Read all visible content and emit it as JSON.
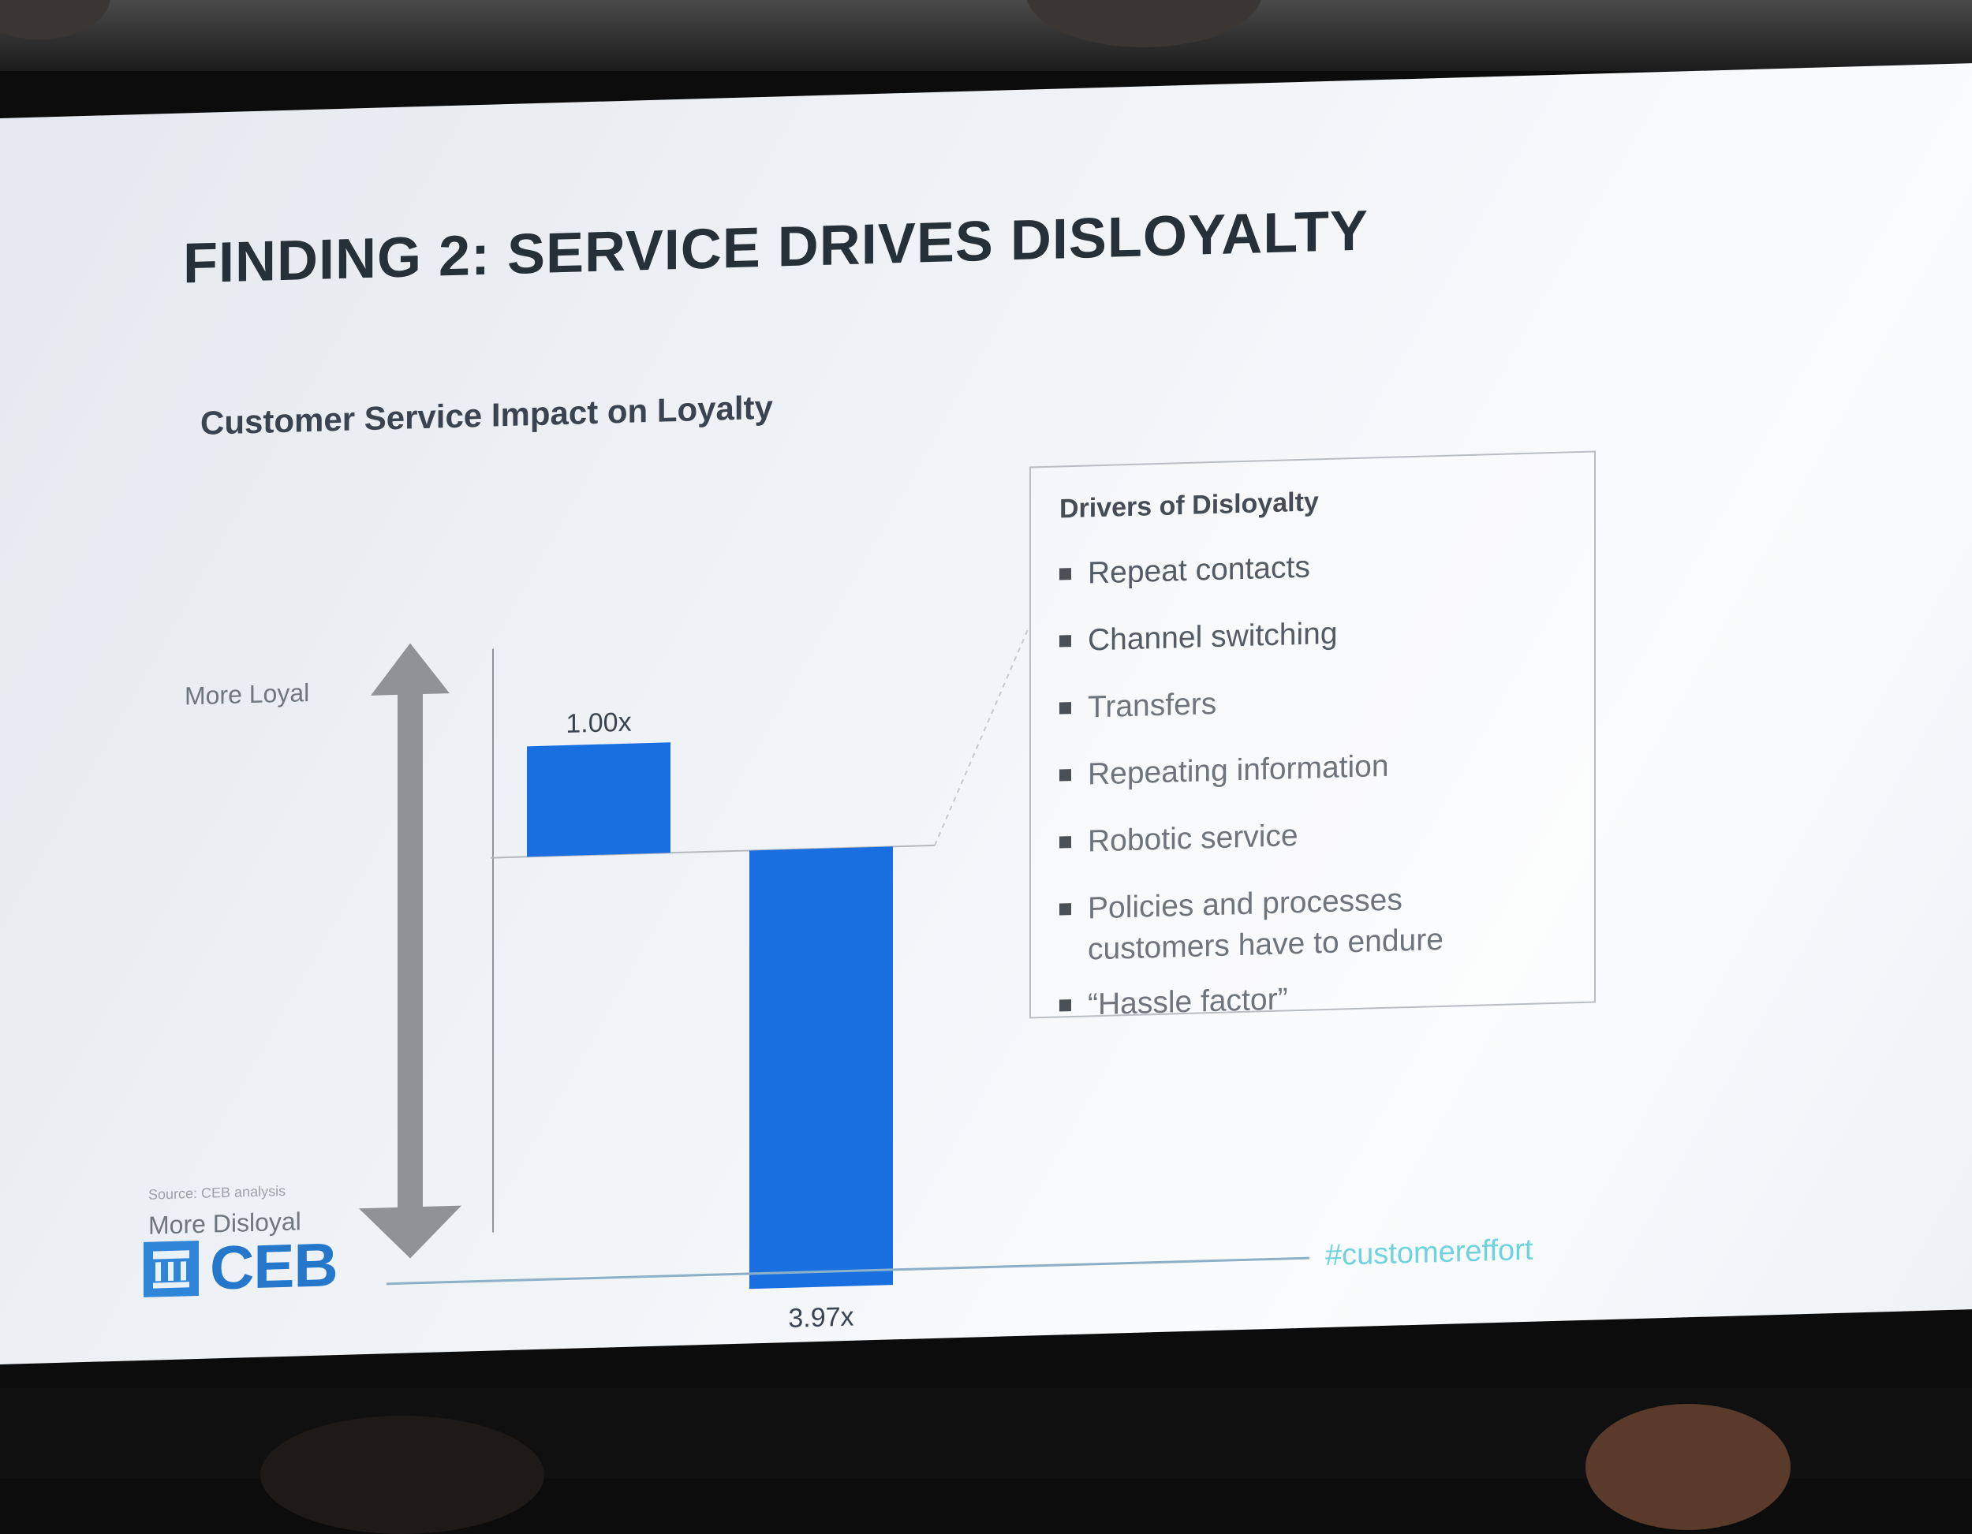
{
  "slide": {
    "title": "FINDING 2: SERVICE DRIVES DISLOYALTY",
    "chart_title": "Customer Service Impact on Loyalty",
    "axis_top_label": "More Loyal",
    "axis_bottom_label": "More Disloyal",
    "source": "Source: CEB analysis",
    "logo_text": "CEB",
    "hashtag": "#customereffort"
  },
  "drivers": {
    "heading": "Drivers of Disloyalty",
    "items": [
      "Repeat contacts",
      "Channel switching",
      "Transfers",
      "Repeating information",
      "Robotic service",
      "Policies and processes",
      "customers have to endure",
      "“Hassle factor”"
    ]
  },
  "colors": {
    "bar": "#1a6fe0",
    "arrow": "#8e9398",
    "title": "#263038",
    "hashtag": "#6fd3df"
  },
  "chart_data": {
    "type": "bar",
    "title": "Customer Service Impact on Loyalty",
    "categories": [
      "",
      ""
    ],
    "values": [
      1.0,
      -3.97
    ],
    "data_labels": [
      "1.00x",
      "3.97x"
    ],
    "ylim": [
      -3.97,
      1.0
    ],
    "xlabel": "",
    "ylabel": "",
    "grid": false,
    "legend": "none"
  }
}
